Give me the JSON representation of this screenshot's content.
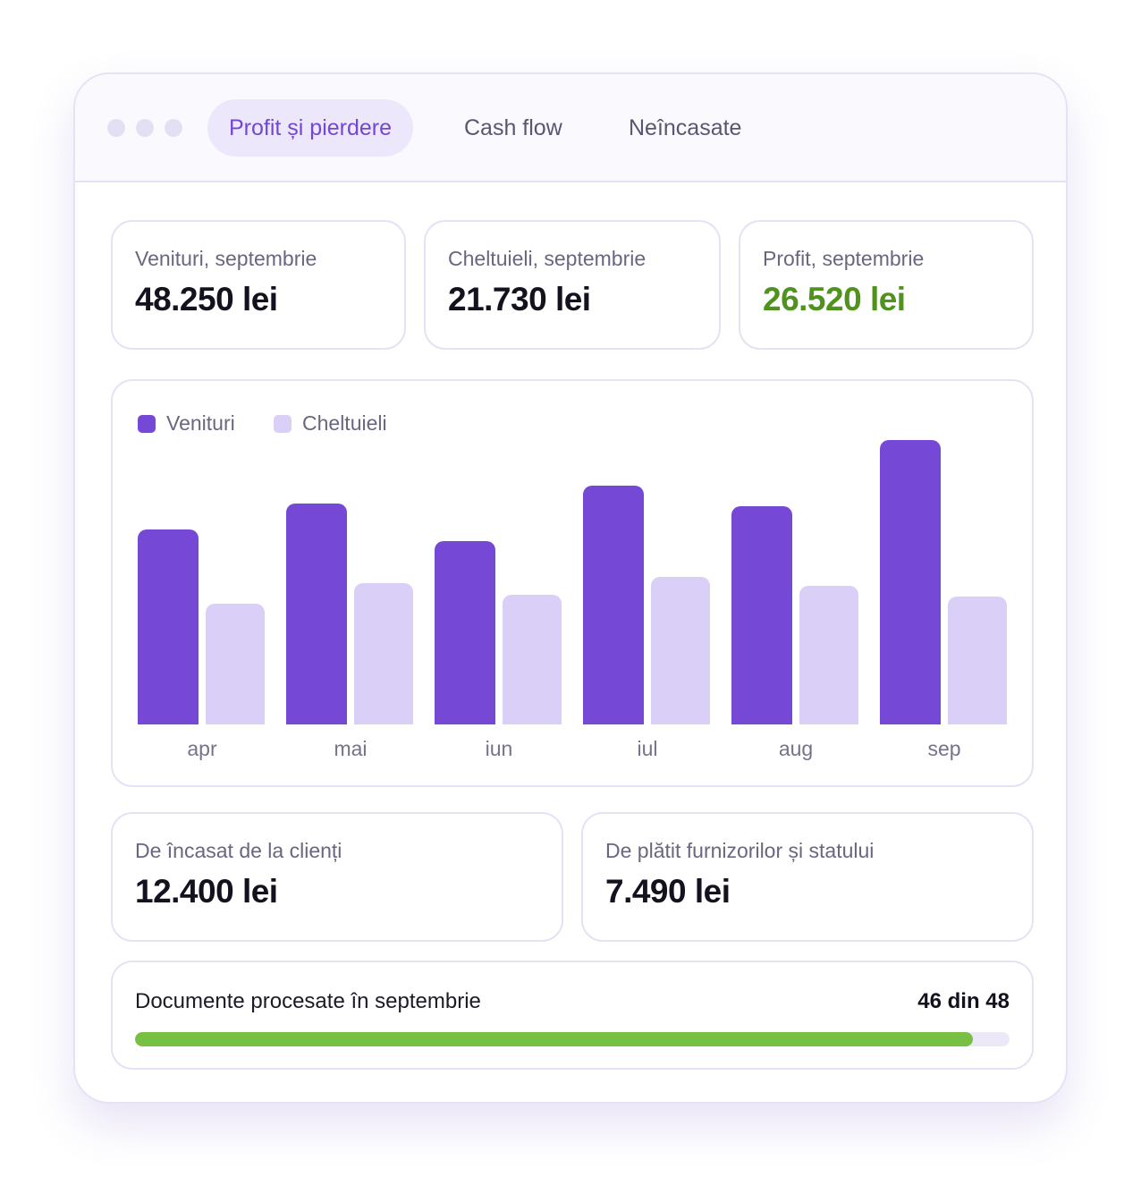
{
  "tabs": [
    {
      "label": "Profit și pierdere",
      "active": true
    },
    {
      "label": "Cash flow",
      "active": false
    },
    {
      "label": "Neîncasate",
      "active": false
    }
  ],
  "summary": [
    {
      "label": "Venituri, septembrie",
      "value": "48.250 lei"
    },
    {
      "label": "Cheltuieli, septembrie",
      "value": "21.730 lei"
    },
    {
      "label": "Profit, septembrie",
      "value": "26.520 lei"
    }
  ],
  "colors": {
    "accent": "#7549d6",
    "expense": "#dad0f7",
    "profit": "#4f921d",
    "progress": "#77c043"
  },
  "chart_data": {
    "type": "bar",
    "categories": [
      "apr",
      "mai",
      "iun",
      "iul",
      "aug",
      "sep"
    ],
    "series": [
      {
        "name": "Venituri",
        "values": [
          33000,
          37500,
          31000,
          40500,
          37000,
          48250
        ]
      },
      {
        "name": "Cheltuieli",
        "values": [
          20500,
          24000,
          22000,
          25000,
          23500,
          21730
        ]
      }
    ],
    "ylim": [
      0,
      50000
    ],
    "grid": false,
    "legend": "top-left"
  },
  "receivables": [
    {
      "label": "De încasat de la clienți",
      "value": "12.400 lei"
    },
    {
      "label": "De plătit furnizorilor și statului",
      "value": "7.490 lei"
    }
  ],
  "progress": {
    "label": "Documente procesate în septembrie",
    "count_text": "46 din 48",
    "done": 46,
    "total": 48
  }
}
